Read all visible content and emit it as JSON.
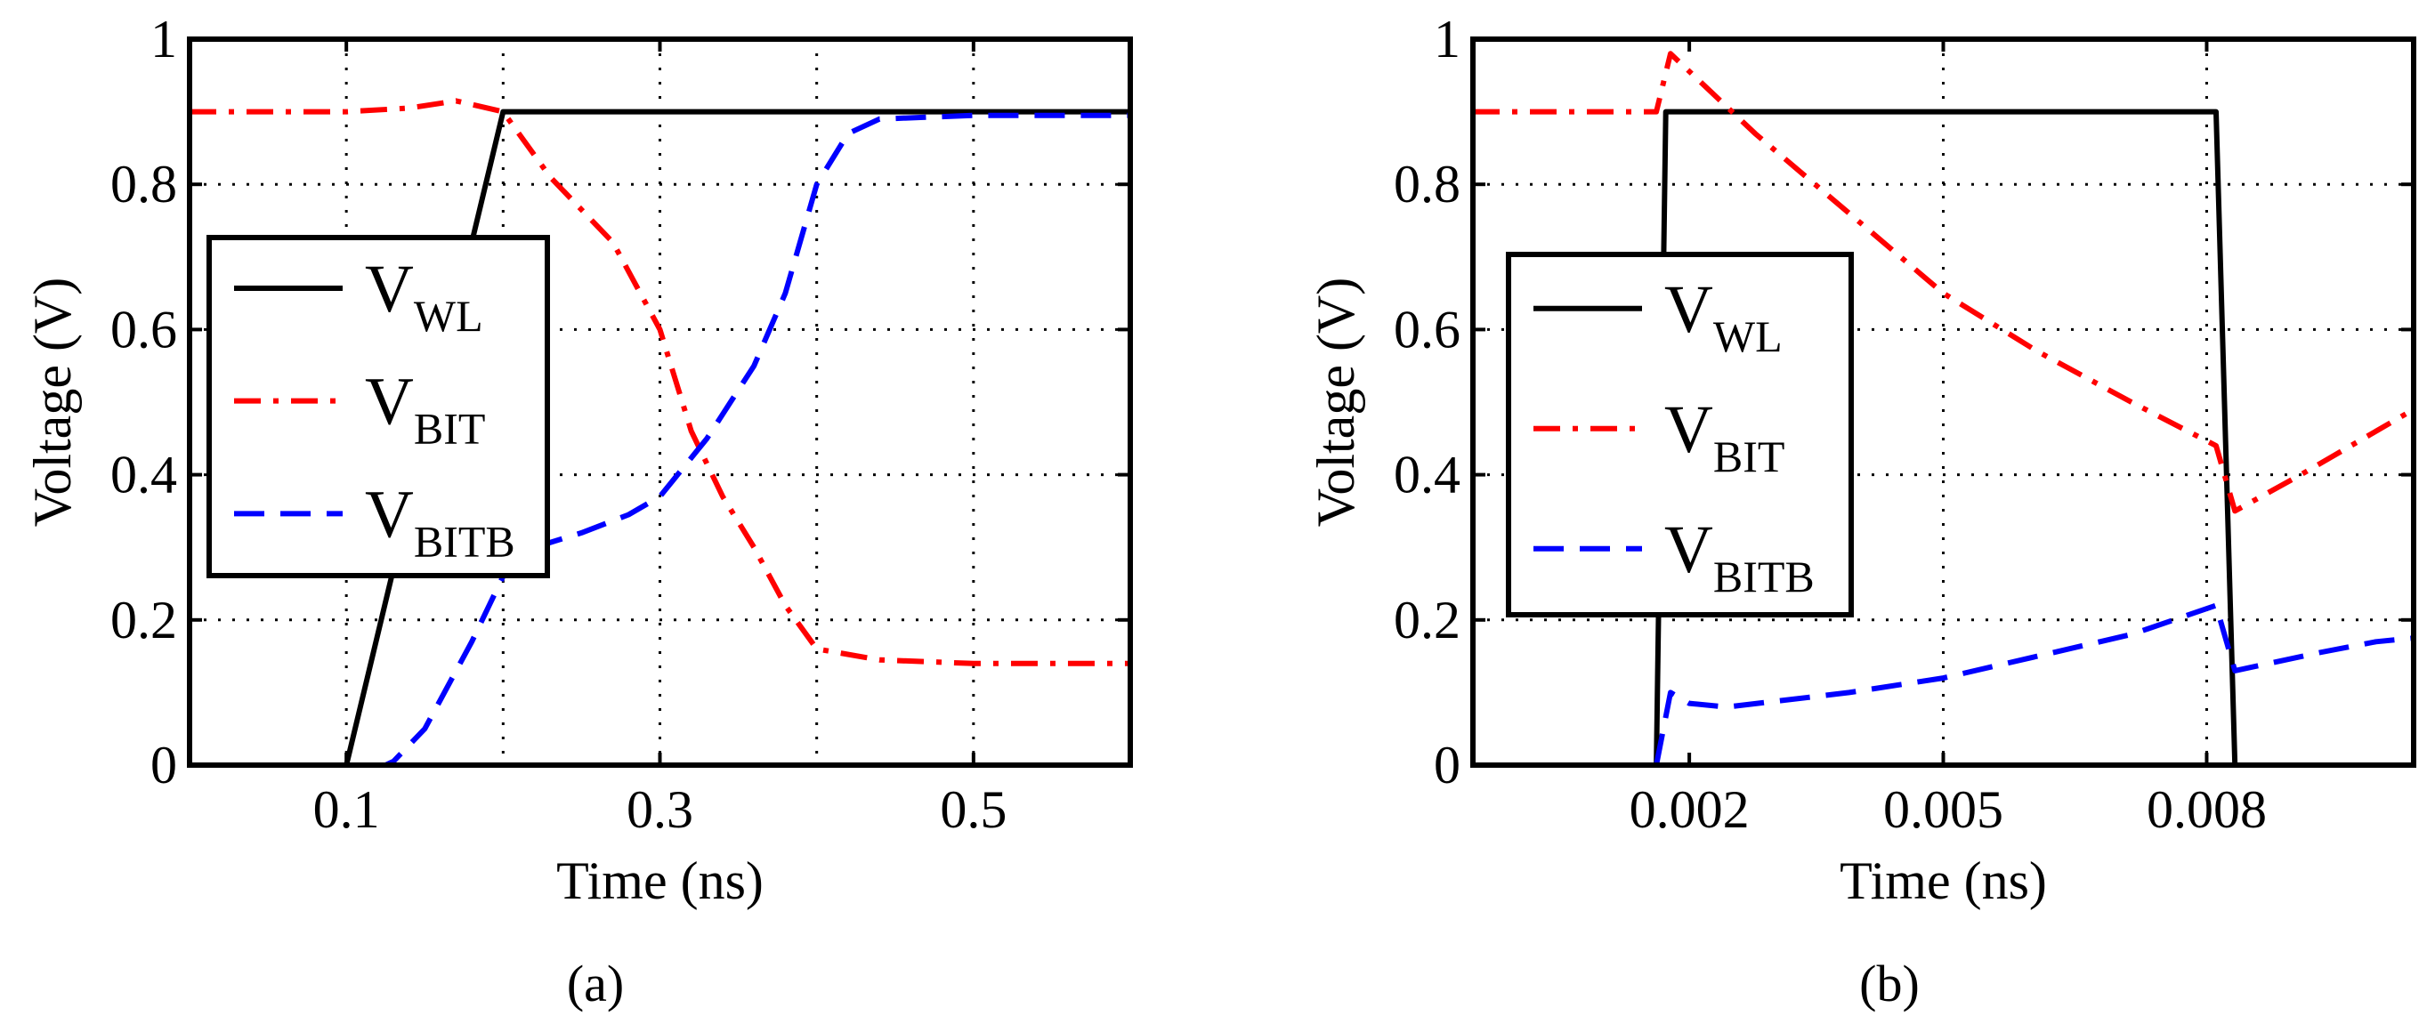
{
  "chart_data": [
    {
      "id": "a",
      "type": "line",
      "caption": "(a)",
      "xlabel": "Time (ns)",
      "ylabel": "Voltage (V)",
      "xlim": [
        0,
        0.6
      ],
      "ylim": [
        0,
        1
      ],
      "xticks": [
        0.1,
        0.3,
        0.5
      ],
      "xtick_labels": [
        "0.1",
        "0.3",
        "0.5"
      ],
      "xgrid": [
        0.1,
        0.2,
        0.3,
        0.4,
        0.5
      ],
      "yticks": [
        0,
        0.2,
        0.4,
        0.6,
        0.8,
        1
      ],
      "ytick_labels": [
        "0",
        "0.2",
        "0.4",
        "0.6",
        "0.8",
        "1"
      ],
      "grid": true,
      "legend_position": "center-left",
      "series": [
        {
          "key": "wl",
          "name": "V",
          "sub": "WL",
          "color": "#000000",
          "style": "solid",
          "x": [
            0,
            0.1,
            0.2,
            0.6
          ],
          "y": [
            0,
            0,
            0.9,
            0.9
          ]
        },
        {
          "key": "bit",
          "name": "V",
          "sub": "BIT",
          "color": "#ff0000",
          "style": "dashdot",
          "x": [
            0,
            0.1,
            0.14,
            0.17,
            0.2,
            0.23,
            0.27,
            0.3,
            0.32,
            0.34,
            0.36,
            0.38,
            0.4,
            0.44,
            0.5,
            0.6
          ],
          "y": [
            0.9,
            0.9,
            0.905,
            0.915,
            0.9,
            0.81,
            0.72,
            0.6,
            0.46,
            0.37,
            0.3,
            0.22,
            0.16,
            0.145,
            0.14,
            0.14
          ]
        },
        {
          "key": "bitb",
          "name": "V",
          "sub": "BITB",
          "color": "#0000ff",
          "style": "dashed",
          "x": [
            0,
            0.125,
            0.13,
            0.15,
            0.18,
            0.2,
            0.22,
            0.25,
            0.28,
            0.3,
            0.33,
            0.36,
            0.38,
            0.4,
            0.42,
            0.44,
            0.5,
            0.6
          ],
          "y": [
            0,
            0,
            0.005,
            0.05,
            0.17,
            0.26,
            0.3,
            0.32,
            0.345,
            0.37,
            0.45,
            0.55,
            0.65,
            0.8,
            0.87,
            0.89,
            0.895,
            0.895
          ]
        }
      ]
    },
    {
      "id": "b",
      "type": "line",
      "caption": "(b)",
      "xlabel": "Time (ns)",
      "ylabel": "Voltage (V)",
      "xlim": [
        0,
        0.01
      ],
      "ylim": [
        0,
        1
      ],
      "xticks": [
        0.0023,
        0.005,
        0.0078
      ],
      "xtick_labels": [
        "0.002",
        "0.005",
        "0.008"
      ],
      "xgrid": [
        0.005,
        0.0078
      ],
      "yticks": [
        0,
        0.2,
        0.4,
        0.6,
        0.8,
        1
      ],
      "ytick_labels": [
        "0",
        "0.2",
        "0.4",
        "0.6",
        "0.8",
        "1"
      ],
      "grid": true,
      "legend_position": "center-left",
      "series": [
        {
          "key": "wl",
          "name": "V",
          "sub": "WL",
          "color": "#000000",
          "style": "solid",
          "x": [
            0,
            0.00195,
            0.00205,
            0.0079,
            0.0081,
            0.01
          ],
          "y": [
            0,
            0,
            0.9,
            0.9,
            0,
            0
          ]
        },
        {
          "key": "bit",
          "name": "V",
          "sub": "BIT",
          "color": "#ff0000",
          "style": "dashdot",
          "x": [
            0,
            0.00195,
            0.0021,
            0.003,
            0.004,
            0.005,
            0.006,
            0.007,
            0.0079,
            0.0081,
            0.0088,
            0.01
          ],
          "y": [
            0.9,
            0.9,
            0.98,
            0.87,
            0.76,
            0.65,
            0.57,
            0.5,
            0.44,
            0.35,
            0.4,
            0.49
          ]
        },
        {
          "key": "bitb",
          "name": "V",
          "sub": "BITB",
          "color": "#0000ff",
          "style": "dashed",
          "x": [
            0,
            0.00195,
            0.0021,
            0.0023,
            0.0027,
            0.004,
            0.005,
            0.006,
            0.007,
            0.0079,
            0.0081,
            0.009,
            0.0096,
            0.01
          ],
          "y": [
            0,
            0,
            0.1,
            0.085,
            0.08,
            0.1,
            0.12,
            0.15,
            0.18,
            0.22,
            0.13,
            0.155,
            0.17,
            0.175
          ]
        }
      ]
    }
  ]
}
